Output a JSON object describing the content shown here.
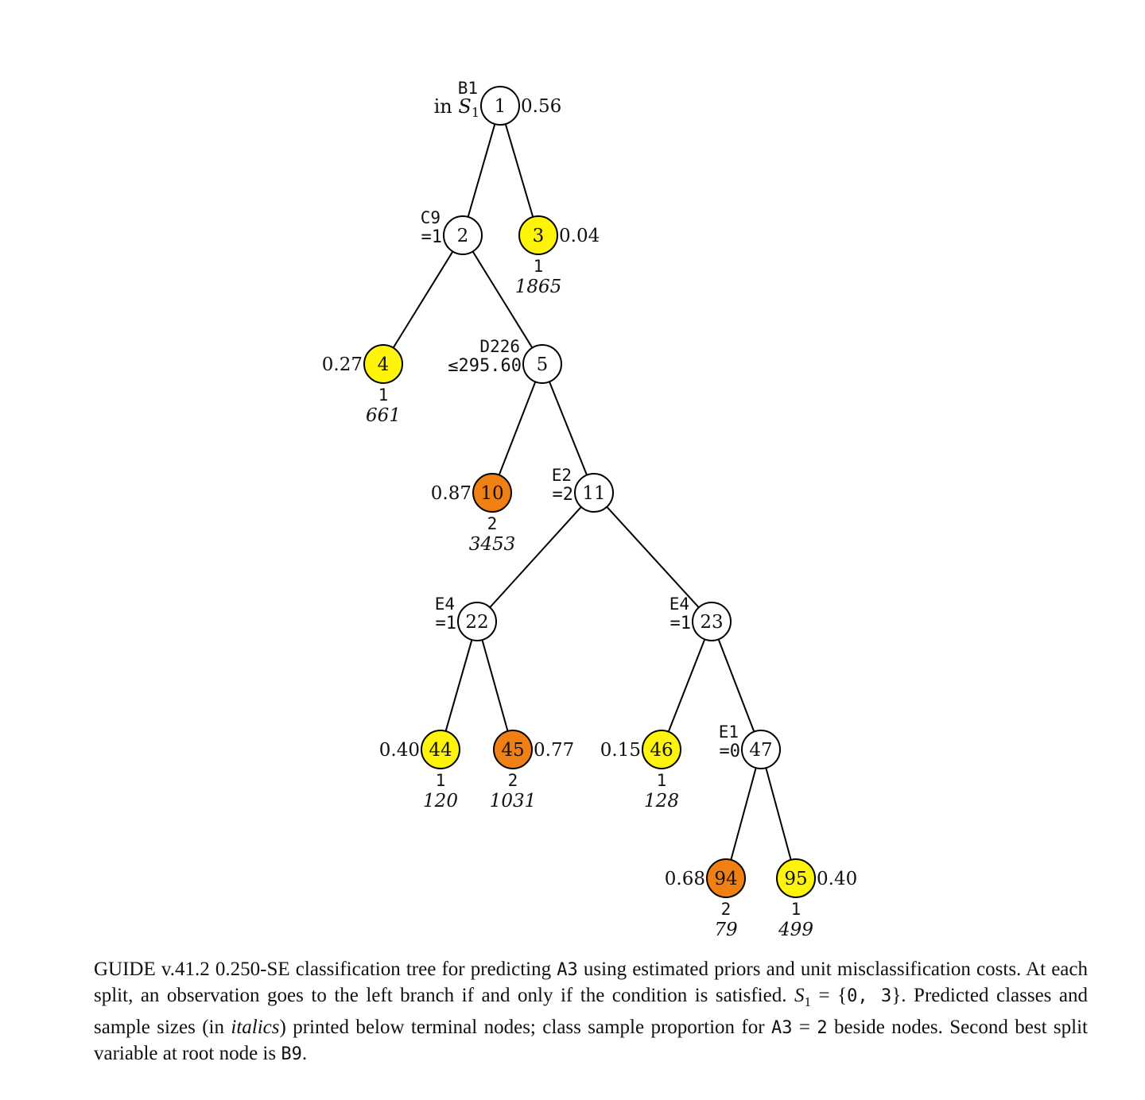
{
  "colors": {
    "class1": "#fef40a",
    "class2": "#f07f14",
    "split": "#ffffff",
    "edge": "#000000"
  },
  "nodes": {
    "n1": {
      "id": "1",
      "var": "B1",
      "cond": "in S₁",
      "prop": "0.56",
      "type": "split"
    },
    "n2": {
      "id": "2",
      "var": "C9",
      "cond": "=1",
      "type": "split"
    },
    "n3": {
      "id": "3",
      "prop": "0.04",
      "cls": "1",
      "n": "1865",
      "type": "class1"
    },
    "n4": {
      "id": "4",
      "prop": "0.27",
      "cls": "1",
      "n": "661",
      "type": "class1"
    },
    "n5": {
      "id": "5",
      "var": "D226",
      "cond": "≤295.60",
      "type": "split"
    },
    "n10": {
      "id": "10",
      "prop": "0.87",
      "cls": "2",
      "n": "3453",
      "type": "class2"
    },
    "n11": {
      "id": "11",
      "var": "E2",
      "cond": "=2",
      "type": "split"
    },
    "n22": {
      "id": "22",
      "var": "E4",
      "cond": "=1",
      "type": "split"
    },
    "n23": {
      "id": "23",
      "var": "E4",
      "cond": "=1",
      "type": "split"
    },
    "n44": {
      "id": "44",
      "prop": "0.40",
      "cls": "1",
      "n": "120",
      "type": "class1"
    },
    "n45": {
      "id": "45",
      "prop": "0.77",
      "cls": "2",
      "n": "1031",
      "type": "class2"
    },
    "n46": {
      "id": "46",
      "prop": "0.15",
      "cls": "1",
      "n": "128",
      "type": "class1"
    },
    "n47": {
      "id": "47",
      "var": "E1",
      "cond": "=0",
      "type": "split"
    },
    "n94": {
      "id": "94",
      "prop": "0.68",
      "cls": "2",
      "n": "79",
      "type": "class2"
    },
    "n95": {
      "id": "95",
      "prop": "0.40",
      "cls": "1",
      "n": "499",
      "type": "class1"
    }
  },
  "edges": [
    [
      "n1",
      "n2"
    ],
    [
      "n1",
      "n3"
    ],
    [
      "n2",
      "n4"
    ],
    [
      "n2",
      "n5"
    ],
    [
      "n5",
      "n10"
    ],
    [
      "n5",
      "n11"
    ],
    [
      "n11",
      "n22"
    ],
    [
      "n11",
      "n23"
    ],
    [
      "n22",
      "n44"
    ],
    [
      "n22",
      "n45"
    ],
    [
      "n23",
      "n46"
    ],
    [
      "n23",
      "n47"
    ],
    [
      "n47",
      "n94"
    ],
    [
      "n47",
      "n95"
    ]
  ],
  "caption": {
    "p1": "GUIDE v.41.2 0.250-SE classification tree for predicting ",
    "c1": "A3",
    "p2": " using estimated priors and unit misclassification costs. At each split, an observation goes to the left branch if and only if the condition is satisfied. ",
    "p3": "S",
    "p3sub": "1",
    "p4": " = {",
    "c2": "0, 3",
    "p5": "}. Predicted classes and sample sizes (in ",
    "p6": "italics",
    "p7": ") printed below terminal nodes; class sample proportion for ",
    "c3": "A3",
    "p8": " = ",
    "c4": "2",
    "p9": " beside nodes. Second best split variable at root node is ",
    "c5": "B9",
    "p10": "."
  }
}
